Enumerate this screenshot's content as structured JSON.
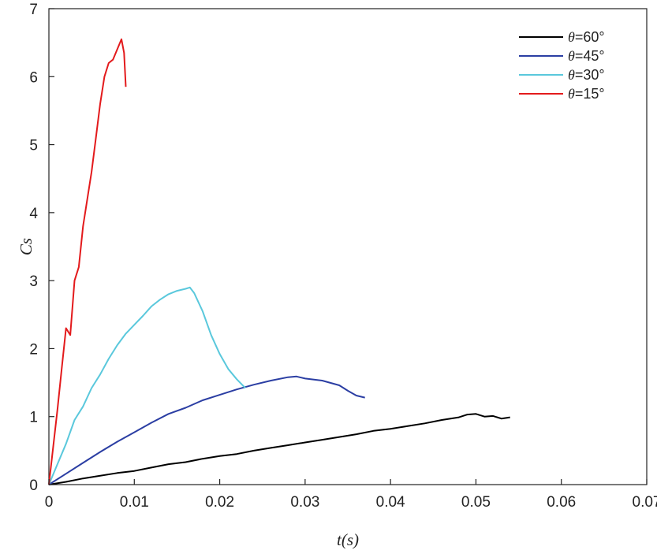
{
  "chart_data": {
    "type": "line",
    "xlabel": "t(s)",
    "ylabel": "Cs",
    "xlim": [
      0,
      0.07
    ],
    "ylim": [
      0,
      7
    ],
    "xticks": [
      0,
      0.01,
      0.02,
      0.03,
      0.04,
      0.05,
      0.06,
      0.07
    ],
    "xtick_labels": [
      "0",
      "0.01",
      "0.02",
      "0.03",
      "0.04",
      "0.05",
      "0.06",
      "0.07"
    ],
    "yticks": [
      0,
      1,
      2,
      3,
      4,
      5,
      6,
      7
    ],
    "ytick_labels": [
      "0",
      "1",
      "2",
      "3",
      "4",
      "5",
      "6",
      "7"
    ],
    "grid": false,
    "legend_position": "top-right",
    "series": [
      {
        "name": "θ=60°",
        "symbol": "θ",
        "label_suffix": "=60°",
        "color": "#000000",
        "x": [
          0,
          0.002,
          0.004,
          0.006,
          0.008,
          0.01,
          0.012,
          0.014,
          0.016,
          0.018,
          0.02,
          0.022,
          0.024,
          0.026,
          0.028,
          0.03,
          0.032,
          0.034,
          0.036,
          0.038,
          0.04,
          0.042,
          0.044,
          0.046,
          0.048,
          0.049,
          0.05,
          0.051,
          0.052,
          0.053,
          0.054
        ],
        "y": [
          0,
          0.04,
          0.09,
          0.13,
          0.17,
          0.2,
          0.25,
          0.3,
          0.33,
          0.38,
          0.42,
          0.45,
          0.5,
          0.54,
          0.58,
          0.62,
          0.66,
          0.7,
          0.74,
          0.79,
          0.82,
          0.86,
          0.9,
          0.95,
          0.99,
          1.03,
          1.04,
          1.0,
          1.01,
          0.97,
          0.99
        ]
      },
      {
        "name": "θ=45°",
        "symbol": "θ",
        "label_suffix": "=45°",
        "color": "#2b3ea3",
        "x": [
          0,
          0.002,
          0.004,
          0.006,
          0.008,
          0.01,
          0.012,
          0.014,
          0.016,
          0.018,
          0.02,
          0.022,
          0.024,
          0.026,
          0.028,
          0.029,
          0.03,
          0.032,
          0.034,
          0.035,
          0.036,
          0.037
        ],
        "y": [
          0,
          0.16,
          0.32,
          0.48,
          0.63,
          0.77,
          0.91,
          1.04,
          1.13,
          1.24,
          1.32,
          1.4,
          1.47,
          1.53,
          1.58,
          1.59,
          1.56,
          1.53,
          1.46,
          1.38,
          1.31,
          1.28
        ]
      },
      {
        "name": "θ=30°",
        "symbol": "θ",
        "label_suffix": "=30°",
        "color": "#5ac8dc",
        "x": [
          0,
          0.001,
          0.002,
          0.003,
          0.004,
          0.005,
          0.006,
          0.007,
          0.008,
          0.009,
          0.01,
          0.011,
          0.012,
          0.013,
          0.014,
          0.015,
          0.016,
          0.0165,
          0.017,
          0.018,
          0.019,
          0.02,
          0.021,
          0.022,
          0.023
        ],
        "y": [
          0,
          0.3,
          0.6,
          0.95,
          1.15,
          1.42,
          1.62,
          1.85,
          2.05,
          2.22,
          2.35,
          2.48,
          2.62,
          2.72,
          2.8,
          2.85,
          2.88,
          2.9,
          2.82,
          2.55,
          2.2,
          1.92,
          1.7,
          1.55,
          1.42
        ]
      },
      {
        "name": "θ=15°",
        "symbol": "θ",
        "label_suffix": "=15°",
        "color": "#e31a1c",
        "x": [
          0,
          0.0005,
          0.001,
          0.0015,
          0.002,
          0.0025,
          0.003,
          0.0035,
          0.004,
          0.0045,
          0.005,
          0.0055,
          0.006,
          0.0065,
          0.007,
          0.0075,
          0.008,
          0.0085,
          0.0088,
          0.009
        ],
        "y": [
          0,
          0.55,
          1.1,
          1.7,
          2.3,
          2.2,
          3.0,
          3.2,
          3.8,
          4.2,
          4.6,
          5.1,
          5.6,
          6.0,
          6.2,
          6.25,
          6.4,
          6.55,
          6.35,
          5.85
        ]
      }
    ]
  }
}
